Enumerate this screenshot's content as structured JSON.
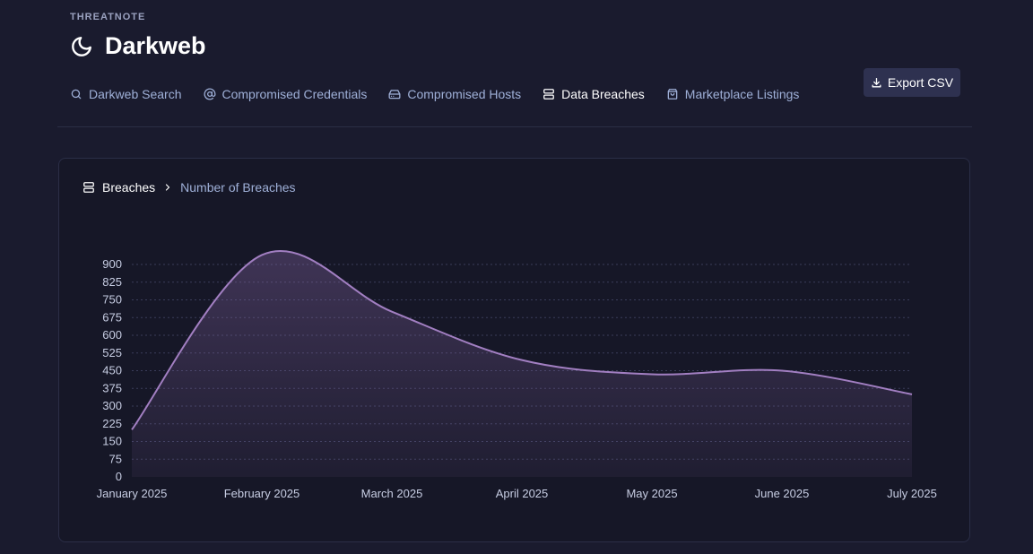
{
  "app": {
    "brand": "THREATNOTE",
    "title": "Darkweb",
    "title_icon": "moon-icon"
  },
  "tabs": [
    {
      "label": "Darkweb Search",
      "icon": "search-icon",
      "active": false
    },
    {
      "label": "Compromised Credentials",
      "icon": "at-icon",
      "active": false
    },
    {
      "label": "Compromised Hosts",
      "icon": "hard-drive-icon",
      "active": false
    },
    {
      "label": "Data Breaches",
      "icon": "database-icon",
      "active": true
    },
    {
      "label": "Marketplace Listings",
      "icon": "shopping-bag-icon",
      "active": false
    }
  ],
  "toolbar": {
    "export_label": "Export CSV",
    "export_icon": "download-icon"
  },
  "breadcrumb": {
    "root": "Breaches",
    "current": "Number of Breaches"
  },
  "colors": {
    "background": "#1a1b2e",
    "card": "#161727",
    "accent_line": "#a27fc2",
    "tab_text": "#9fb0d8",
    "button": "#2e3150"
  },
  "chart_data": {
    "type": "area",
    "title": "",
    "xlabel": "",
    "ylabel": "",
    "x": [
      "January 2025",
      "February 2025",
      "March 2025",
      "April 2025",
      "May 2025",
      "June 2025",
      "July 2025"
    ],
    "series": [
      {
        "values": [
          200,
          940,
          700,
          495,
          435,
          450,
          350
        ]
      }
    ],
    "ylim": [
      0,
      900
    ],
    "yticks": [
      0,
      75,
      150,
      225,
      300,
      375,
      450,
      525,
      600,
      675,
      750,
      825,
      900
    ],
    "grid": true,
    "legend": "none"
  }
}
